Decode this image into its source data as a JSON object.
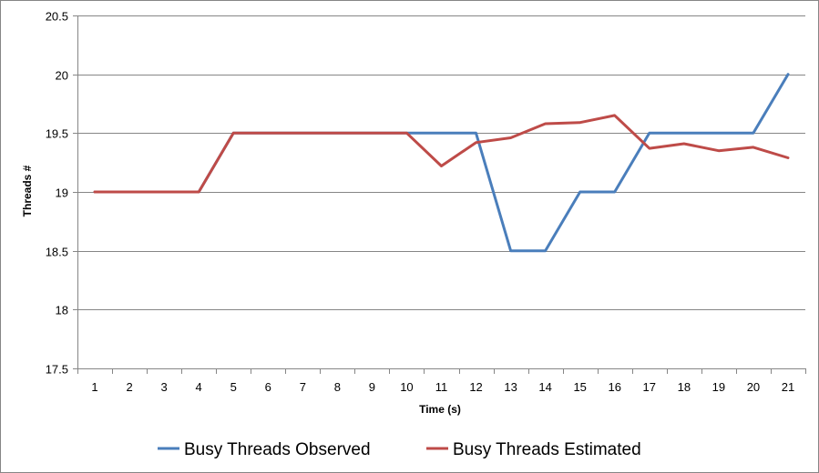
{
  "chart_data": {
    "type": "line",
    "xlabel": "Time (s)",
    "ylabel": "Threads #",
    "ylim": [
      17.5,
      20.5
    ],
    "yticks": [
      17.5,
      18,
      18.5,
      19,
      19.5,
      20,
      20.5
    ],
    "ytick_labels": [
      "17.5",
      "18",
      "18.5",
      "19",
      "19.5",
      "20",
      "20.5"
    ],
    "categories": [
      "1",
      "2",
      "3",
      "4",
      "5",
      "6",
      "7",
      "8",
      "9",
      "10",
      "11",
      "12",
      "13",
      "14",
      "15",
      "16",
      "17",
      "18",
      "19",
      "20",
      "21"
    ],
    "grid": "horizontal",
    "legend_position": "bottom",
    "series": [
      {
        "name": "Busy Threads Observed",
        "color": "#4a7ebb",
        "values": [
          19,
          19,
          19,
          19,
          19.5,
          19.5,
          19.5,
          19.5,
          19.5,
          19.5,
          19.5,
          19.5,
          18.5,
          18.5,
          19,
          19,
          19.5,
          19.5,
          19.5,
          19.5,
          20
        ]
      },
      {
        "name": "Busy Threads Estimated",
        "color": "#be4b48",
        "values": [
          19,
          19,
          19,
          19,
          19.5,
          19.5,
          19.5,
          19.5,
          19.5,
          19.5,
          19.22,
          19.42,
          19.46,
          19.58,
          19.59,
          19.65,
          19.37,
          19.41,
          19.35,
          19.38,
          19.29
        ]
      }
    ]
  }
}
